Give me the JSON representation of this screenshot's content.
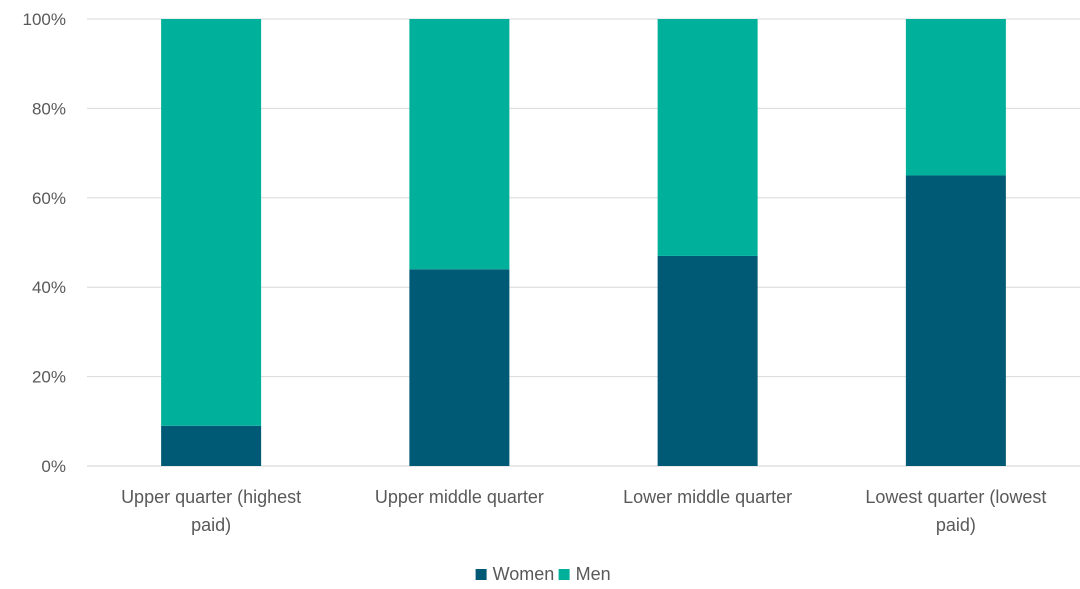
{
  "chart_data": {
    "type": "bar",
    "stacked": true,
    "categories": [
      [
        "Upper quarter (highest",
        "paid)"
      ],
      [
        "Upper middle quarter"
      ],
      [
        "Lower middle quarter"
      ],
      [
        "Lowest quarter (lowest",
        "paid)"
      ]
    ],
    "series": [
      {
        "name": "Women",
        "color": "#005A76",
        "values": [
          9,
          44,
          47,
          65
        ]
      },
      {
        "name": "Men",
        "color": "#00B09B",
        "values": [
          91,
          56,
          53,
          35
        ]
      }
    ],
    "ylim": [
      0,
      100
    ],
    "yticks": [
      0,
      20,
      40,
      60,
      80,
      100
    ],
    "ytick_labels": [
      "0%",
      "20%",
      "40%",
      "60%",
      "80%",
      "100%"
    ],
    "grid": true,
    "legend_position": "bottom"
  }
}
